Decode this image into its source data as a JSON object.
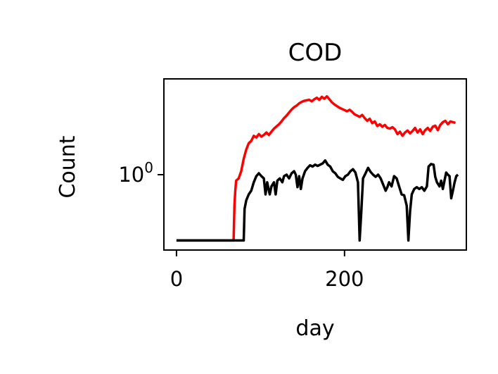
{
  "chart_data": {
    "type": "line",
    "title": "COD",
    "xlabel": "day",
    "ylabel": "Count",
    "yscale": "log",
    "xlim": [
      -15,
      345
    ],
    "ylim": [
      0.35,
      3.8
    ],
    "x_ticks": [
      {
        "value": 0,
        "label": "0"
      },
      {
        "value": 200,
        "label": "200"
      }
    ],
    "y_ticks": [
      {
        "value": 1,
        "base": "10",
        "exp": "0"
      }
    ],
    "grid": false,
    "legend": "none",
    "series": [
      {
        "color": "#ff0000",
        "points": [
          [
            0,
            0.4
          ],
          [
            30,
            0.4
          ],
          [
            60,
            0.4
          ],
          [
            68,
            0.4
          ],
          [
            69,
            0.65
          ],
          [
            70,
            0.8
          ],
          [
            71,
            0.92
          ],
          [
            74,
            0.95
          ],
          [
            77,
            1.05
          ],
          [
            80,
            1.25
          ],
          [
            83,
            1.42
          ],
          [
            86,
            1.55
          ],
          [
            89,
            1.6
          ],
          [
            92,
            1.72
          ],
          [
            95,
            1.68
          ],
          [
            98,
            1.76
          ],
          [
            101,
            1.7
          ],
          [
            104,
            1.74
          ],
          [
            107,
            1.8
          ],
          [
            110,
            1.74
          ],
          [
            113,
            1.82
          ],
          [
            116,
            1.9
          ],
          [
            119,
            1.96
          ],
          [
            122,
            2.02
          ],
          [
            125,
            2.1
          ],
          [
            128,
            2.2
          ],
          [
            131,
            2.28
          ],
          [
            134,
            2.38
          ],
          [
            137,
            2.48
          ],
          [
            140,
            2.56
          ],
          [
            143,
            2.62
          ],
          [
            146,
            2.7
          ],
          [
            149,
            2.76
          ],
          [
            152,
            2.8
          ],
          [
            155,
            2.82
          ],
          [
            158,
            2.84
          ],
          [
            161,
            2.78
          ],
          [
            164,
            2.86
          ],
          [
            167,
            2.92
          ],
          [
            170,
            2.84
          ],
          [
            173,
            2.96
          ],
          [
            176,
            2.88
          ],
          [
            179,
            2.98
          ],
          [
            182,
            2.86
          ],
          [
            185,
            2.74
          ],
          [
            188,
            2.66
          ],
          [
            191,
            2.6
          ],
          [
            194,
            2.54
          ],
          [
            197,
            2.5
          ],
          [
            200,
            2.46
          ],
          [
            203,
            2.42
          ],
          [
            206,
            2.47
          ],
          [
            209,
            2.4
          ],
          [
            212,
            2.32
          ],
          [
            215,
            2.28
          ],
          [
            218,
            2.24
          ],
          [
            221,
            2.3
          ],
          [
            224,
            2.2
          ],
          [
            227,
            2.12
          ],
          [
            230,
            2.18
          ],
          [
            233,
            2.05
          ],
          [
            236,
            2.1
          ],
          [
            239,
            1.97
          ],
          [
            242,
            2.02
          ],
          [
            245,
            1.95
          ],
          [
            248,
            2.0
          ],
          [
            251,
            1.92
          ],
          [
            254,
            1.9
          ],
          [
            257,
            1.94
          ],
          [
            260,
            1.88
          ],
          [
            263,
            1.76
          ],
          [
            266,
            1.82
          ],
          [
            269,
            1.72
          ],
          [
            272,
            1.8
          ],
          [
            275,
            1.85
          ],
          [
            278,
            1.78
          ],
          [
            281,
            1.84
          ],
          [
            284,
            1.92
          ],
          [
            287,
            1.8
          ],
          [
            290,
            1.88
          ],
          [
            293,
            1.76
          ],
          [
            296,
            1.86
          ],
          [
            299,
            1.92
          ],
          [
            302,
            1.84
          ],
          [
            305,
            1.95
          ],
          [
            308,
            1.98
          ],
          [
            311,
            1.86
          ],
          [
            314,
            2.0
          ],
          [
            317,
            2.08
          ],
          [
            320,
            2.12
          ],
          [
            323,
            2.02
          ],
          [
            326,
            2.1
          ],
          [
            329,
            2.08
          ],
          [
            332,
            2.06
          ]
        ]
      },
      {
        "color": "#000000",
        "points": [
          [
            0,
            0.4
          ],
          [
            30,
            0.4
          ],
          [
            60,
            0.4
          ],
          [
            80,
            0.4
          ],
          [
            81,
            0.62
          ],
          [
            83,
            0.7
          ],
          [
            86,
            0.76
          ],
          [
            89,
            0.8
          ],
          [
            92,
            0.9
          ],
          [
            95,
            0.98
          ],
          [
            98,
            1.02
          ],
          [
            101,
            0.98
          ],
          [
            104,
            0.95
          ],
          [
            106,
            0.76
          ],
          [
            108,
            0.9
          ],
          [
            110,
            0.8
          ],
          [
            111,
            0.76
          ],
          [
            113,
            0.85
          ],
          [
            116,
            0.9
          ],
          [
            118,
            0.76
          ],
          [
            120,
            0.92
          ],
          [
            123,
            0.95
          ],
          [
            126,
            0.9
          ],
          [
            128,
            0.98
          ],
          [
            131,
            1.0
          ],
          [
            134,
            0.95
          ],
          [
            137,
            1.02
          ],
          [
            140,
            1.05
          ],
          [
            142,
            1.0
          ],
          [
            144,
            0.84
          ],
          [
            146,
            0.98
          ],
          [
            148,
            0.82
          ],
          [
            150,
            0.95
          ],
          [
            153,
            1.05
          ],
          [
            156,
            1.1
          ],
          [
            159,
            1.14
          ],
          [
            162,
            1.12
          ],
          [
            165,
            1.15
          ],
          [
            168,
            1.13
          ],
          [
            171,
            1.15
          ],
          [
            174,
            1.17
          ],
          [
            177,
            1.22
          ],
          [
            180,
            1.15
          ],
          [
            183,
            1.12
          ],
          [
            186,
            1.05
          ],
          [
            189,
            1.02
          ],
          [
            192,
            0.97
          ],
          [
            195,
            0.95
          ],
          [
            198,
            0.93
          ],
          [
            201,
            0.98
          ],
          [
            204,
            1.0
          ],
          [
            207,
            1.05
          ],
          [
            210,
            1.08
          ],
          [
            213,
            1.03
          ],
          [
            216,
            0.9
          ],
          [
            218,
            0.4
          ],
          [
            220,
            0.6
          ],
          [
            222,
            0.95
          ],
          [
            225,
            1.02
          ],
          [
            228,
            1.1
          ],
          [
            231,
            1.04
          ],
          [
            234,
            1.0
          ],
          [
            237,
            0.97
          ],
          [
            240,
            1.0
          ],
          [
            243,
            0.95
          ],
          [
            246,
            0.87
          ],
          [
            249,
            0.8
          ],
          [
            251,
            0.84
          ],
          [
            253,
            0.9
          ],
          [
            256,
            0.85
          ],
          [
            259,
            0.98
          ],
          [
            262,
            0.95
          ],
          [
            265,
            0.85
          ],
          [
            268,
            0.76
          ],
          [
            271,
            0.75
          ],
          [
            274,
            0.65
          ],
          [
            276,
            0.4
          ],
          [
            278,
            0.6
          ],
          [
            280,
            0.76
          ],
          [
            283,
            0.82
          ],
          [
            286,
            0.84
          ],
          [
            289,
            0.82
          ],
          [
            292,
            0.84
          ],
          [
            295,
            0.8
          ],
          [
            298,
            0.85
          ],
          [
            300,
            1.12
          ],
          [
            303,
            1.16
          ],
          [
            306,
            1.15
          ],
          [
            308,
            0.97
          ],
          [
            310,
            0.9
          ],
          [
            313,
            0.85
          ],
          [
            315,
            0.92
          ],
          [
            317,
            0.82
          ],
          [
            319,
            0.92
          ],
          [
            321,
            1.03
          ],
          [
            323,
            1.0
          ],
          [
            325,
            0.98
          ],
          [
            327,
            0.72
          ],
          [
            329,
            0.8
          ],
          [
            331,
            0.9
          ],
          [
            333,
            0.98
          ],
          [
            335,
            1.0
          ]
        ]
      }
    ]
  }
}
